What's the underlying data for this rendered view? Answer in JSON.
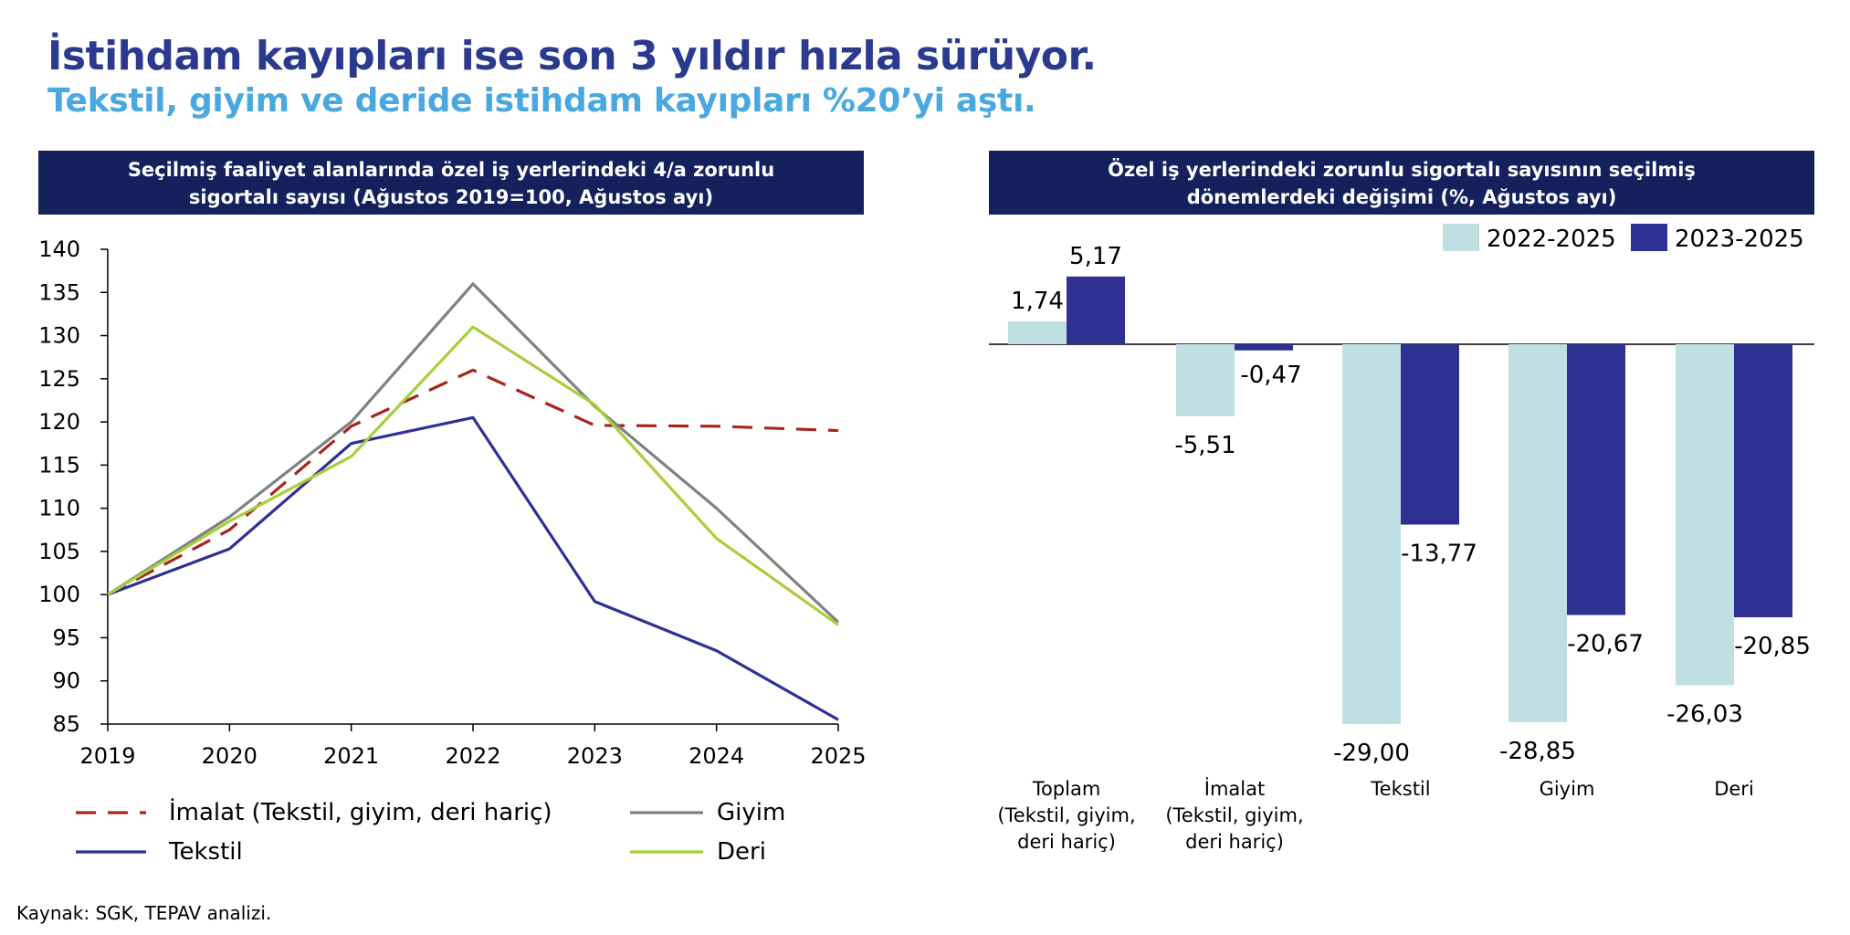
{
  "header": {
    "title": "İstihdam kayıpları ise son 3 yıldır hızla sürüyor.",
    "subtitle": "Tekstil, giyim ve deride istihdam kayıpları %20’yi aştı."
  },
  "source": "Kaynak: SGK, TEPAV analizi.",
  "chart_data": [
    {
      "type": "line",
      "panel_title_line1": "Seçilmiş faaliyet alanlarında özel iş yerlerindeki 4/a zorunlu",
      "panel_title_line2": "sigortalı sayısı (Ağustos 2019=100, Ağustos ayı)",
      "x": [
        "2019",
        "2020",
        "2021",
        "2022",
        "2023",
        "2024",
        "2025"
      ],
      "ylim": [
        85,
        140
      ],
      "yticks": [
        85,
        90,
        95,
        100,
        105,
        110,
        115,
        120,
        125,
        130,
        135,
        140
      ],
      "series": [
        {
          "name": "İmalat (Tekstil, giyim, deri hariç)",
          "color": "#a8241c",
          "dash": true,
          "values": [
            100,
            107.5,
            119.5,
            126,
            119.6,
            119.5,
            119
          ]
        },
        {
          "name": "Giyim",
          "color": "#808080",
          "dash": false,
          "values": [
            100,
            109,
            120,
            136,
            121.8,
            110,
            96.8
          ]
        },
        {
          "name": "Tekstil",
          "color": "#2e3192",
          "dash": false,
          "values": [
            100,
            105.3,
            117.5,
            120.5,
            99.2,
            93.5,
            85.5
          ]
        },
        {
          "name": "Deri",
          "color": "#a5cf3d",
          "dash": false,
          "values": [
            100,
            108.5,
            116,
            131,
            122,
            106.5,
            96.5
          ]
        }
      ]
    },
    {
      "type": "bar",
      "panel_title_line1": "Özel iş yerlerindeki zorunlu sigortalı sayısının seçilmiş",
      "panel_title_line2": "dönemlerdeki değişimi (%, Ağustos ayı)",
      "categories": [
        [
          "Toplam",
          "(Tekstil, giyim,",
          "deri hariç)"
        ],
        [
          "İmalat",
          "(Tekstil, giyim,",
          "deri hariç)"
        ],
        [
          "Tekstil"
        ],
        [
          "Giyim"
        ],
        [
          "Deri"
        ]
      ],
      "ylim": [
        -30,
        6
      ],
      "series": [
        {
          "name": "2022-2025",
          "color": "#c0dfe2",
          "values": [
            1.74,
            -5.51,
            -29.0,
            -28.85,
            -26.03
          ],
          "labels": [
            "1,74",
            "-5,51",
            "-29,00",
            "-28,85",
            "-26,03"
          ]
        },
        {
          "name": "2023-2025",
          "color": "#2e3192",
          "values": [
            5.17,
            -0.47,
            -13.77,
            -20.67,
            -20.85
          ],
          "labels": [
            "5,17",
            "-0,47",
            "-13,77",
            "-20,67",
            "-20,85"
          ]
        }
      ]
    }
  ]
}
